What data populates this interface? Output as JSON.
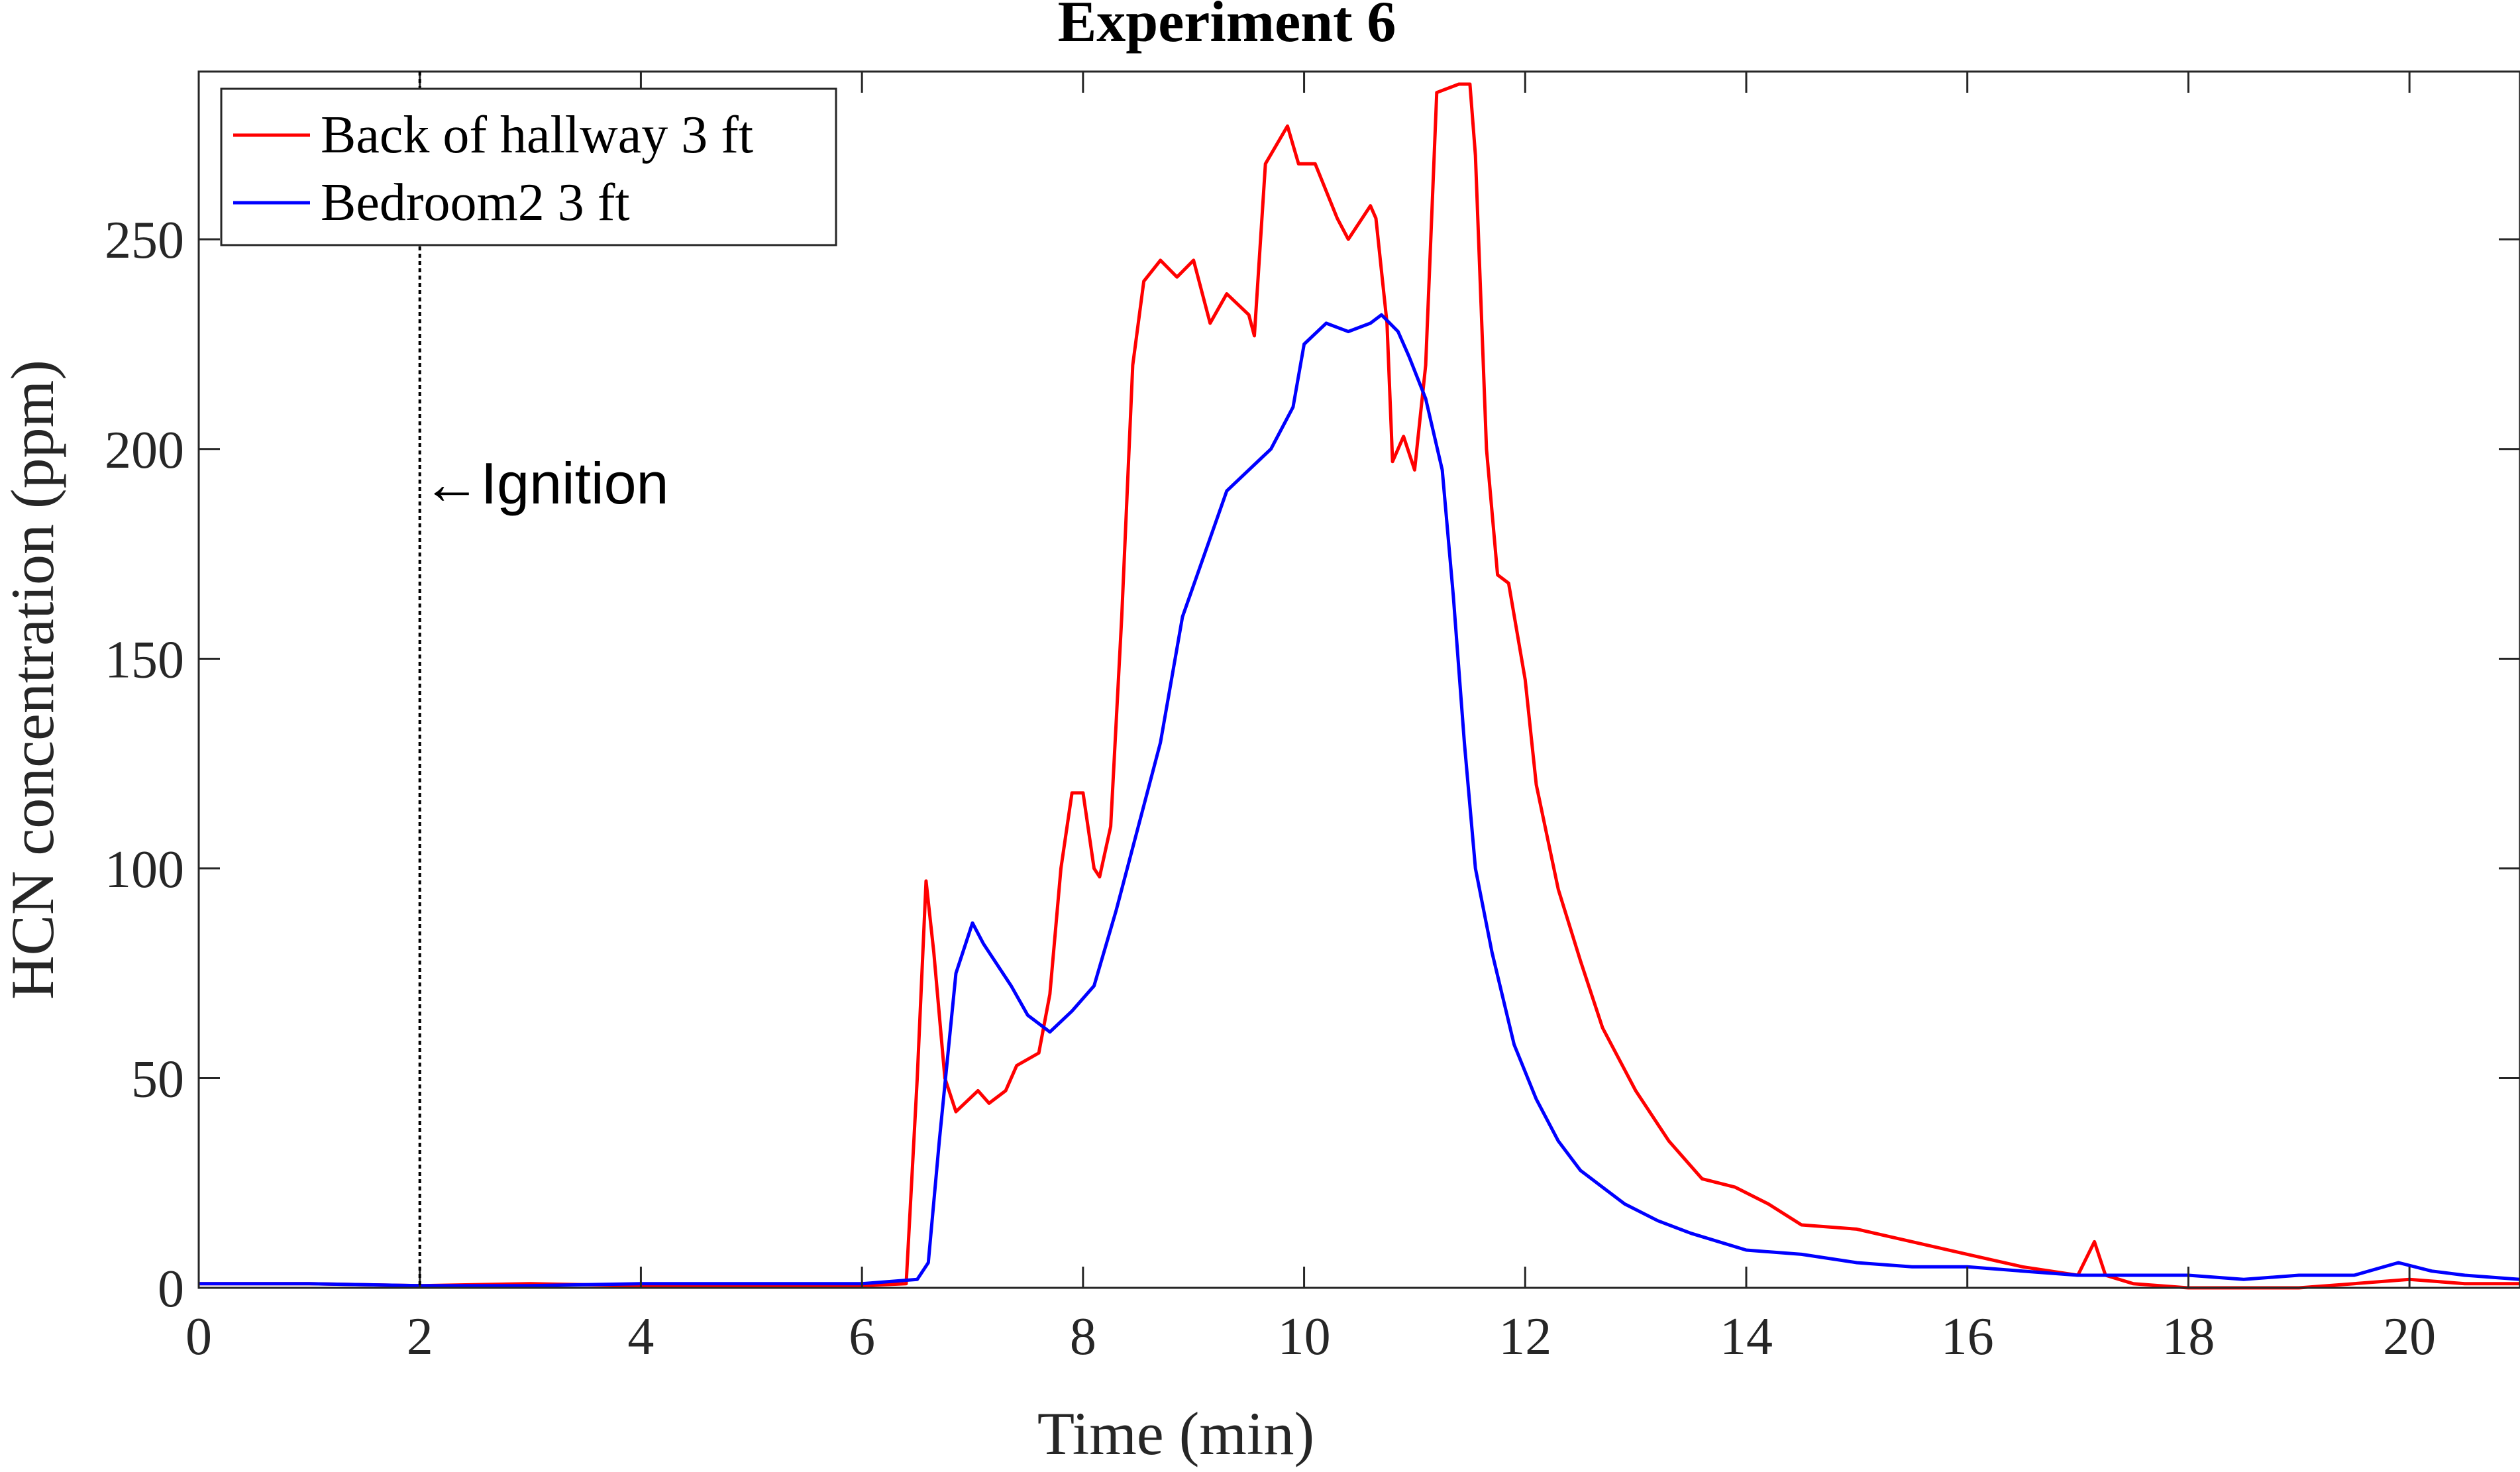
{
  "chart_data": {
    "type": "line",
    "title": "Experiment 6",
    "xlabel": "Time (min)",
    "ylabel": "HCN concentration (ppm)",
    "xlim": [
      0,
      21
    ],
    "ylim": [
      0,
      290
    ],
    "xticks": [
      0,
      2,
      4,
      6,
      8,
      10,
      12,
      14,
      16,
      18,
      20
    ],
    "yticks": [
      0,
      50,
      100,
      150,
      200,
      250
    ],
    "grid": false,
    "legend_position": "top-left",
    "annotation": {
      "x": 2,
      "text": "Ignition",
      "arrow": "←"
    },
    "series": [
      {
        "name": "Back of hallway 3 ft",
        "color": "#ff0000",
        "points": [
          [
            0,
            1
          ],
          [
            1,
            1
          ],
          [
            2,
            0.5
          ],
          [
            3,
            1
          ],
          [
            4,
            0.5
          ],
          [
            5,
            0.5
          ],
          [
            6,
            0.5
          ],
          [
            6.4,
            1
          ],
          [
            6.5,
            50
          ],
          [
            6.58,
            97
          ],
          [
            6.65,
            80
          ],
          [
            6.75,
            50
          ],
          [
            6.85,
            42
          ],
          [
            7.05,
            47
          ],
          [
            7.15,
            44
          ],
          [
            7.3,
            47
          ],
          [
            7.4,
            53
          ],
          [
            7.6,
            56
          ],
          [
            7.7,
            70
          ],
          [
            7.8,
            100
          ],
          [
            7.9,
            118
          ],
          [
            8.0,
            118
          ],
          [
            8.1,
            100
          ],
          [
            8.15,
            98
          ],
          [
            8.25,
            110
          ],
          [
            8.35,
            160
          ],
          [
            8.45,
            220
          ],
          [
            8.55,
            240
          ],
          [
            8.7,
            245
          ],
          [
            8.85,
            241
          ],
          [
            9.0,
            245
          ],
          [
            9.15,
            230
          ],
          [
            9.3,
            237
          ],
          [
            9.5,
            232
          ],
          [
            9.55,
            227
          ],
          [
            9.65,
            268
          ],
          [
            9.85,
            277
          ],
          [
            9.95,
            268
          ],
          [
            10.1,
            268
          ],
          [
            10.3,
            255
          ],
          [
            10.4,
            250
          ],
          [
            10.6,
            258
          ],
          [
            10.65,
            255
          ],
          [
            10.75,
            230
          ],
          [
            10.8,
            197
          ],
          [
            10.9,
            203
          ],
          [
            11.0,
            195
          ],
          [
            11.1,
            220
          ],
          [
            11.2,
            285
          ],
          [
            11.4,
            287
          ],
          [
            11.5,
            287
          ],
          [
            11.55,
            270
          ],
          [
            11.65,
            200
          ],
          [
            11.75,
            170
          ],
          [
            11.85,
            168
          ],
          [
            12.0,
            145
          ],
          [
            12.1,
            120
          ],
          [
            12.3,
            95
          ],
          [
            12.5,
            78
          ],
          [
            12.7,
            62
          ],
          [
            13.0,
            47
          ],
          [
            13.3,
            35
          ],
          [
            13.6,
            26
          ],
          [
            13.9,
            24
          ],
          [
            14.2,
            20
          ],
          [
            14.5,
            15
          ],
          [
            15.0,
            14
          ],
          [
            15.5,
            11
          ],
          [
            16.0,
            8
          ],
          [
            16.5,
            5
          ],
          [
            17.0,
            3
          ],
          [
            17.15,
            11
          ],
          [
            17.25,
            3
          ],
          [
            17.5,
            1
          ],
          [
            18.0,
            0
          ],
          [
            18.5,
            0
          ],
          [
            19.0,
            0
          ],
          [
            19.5,
            1
          ],
          [
            20.0,
            2
          ],
          [
            20.5,
            1
          ],
          [
            21,
            1
          ]
        ]
      },
      {
        "name": "Bedroom2 3 ft",
        "color": "#0000ff",
        "points": [
          [
            0,
            1
          ],
          [
            1,
            1
          ],
          [
            2,
            0.5
          ],
          [
            3,
            0.5
          ],
          [
            4,
            1
          ],
          [
            5,
            1
          ],
          [
            6,
            1
          ],
          [
            6.5,
            2
          ],
          [
            6.6,
            6
          ],
          [
            6.7,
            35
          ],
          [
            6.85,
            75
          ],
          [
            7.0,
            87
          ],
          [
            7.1,
            82
          ],
          [
            7.2,
            78
          ],
          [
            7.35,
            72
          ],
          [
            7.5,
            65
          ],
          [
            7.7,
            61
          ],
          [
            7.9,
            66
          ],
          [
            8.1,
            72
          ],
          [
            8.3,
            90
          ],
          [
            8.5,
            110
          ],
          [
            8.7,
            130
          ],
          [
            8.9,
            160
          ],
          [
            9.1,
            175
          ],
          [
            9.3,
            190
          ],
          [
            9.5,
            195
          ],
          [
            9.7,
            200
          ],
          [
            9.9,
            210
          ],
          [
            10.0,
            225
          ],
          [
            10.2,
            230
          ],
          [
            10.4,
            228
          ],
          [
            10.6,
            230
          ],
          [
            10.7,
            232
          ],
          [
            10.85,
            228
          ],
          [
            10.95,
            222
          ],
          [
            11.1,
            212
          ],
          [
            11.25,
            195
          ],
          [
            11.35,
            165
          ],
          [
            11.45,
            130
          ],
          [
            11.55,
            100
          ],
          [
            11.7,
            80
          ],
          [
            11.9,
            58
          ],
          [
            12.1,
            45
          ],
          [
            12.3,
            35
          ],
          [
            12.5,
            28
          ],
          [
            12.7,
            24
          ],
          [
            12.9,
            20
          ],
          [
            13.2,
            16
          ],
          [
            13.5,
            13
          ],
          [
            14.0,
            9
          ],
          [
            14.5,
            8
          ],
          [
            15.0,
            6
          ],
          [
            15.5,
            5
          ],
          [
            16.0,
            5
          ],
          [
            16.5,
            4
          ],
          [
            17.0,
            3
          ],
          [
            17.5,
            3
          ],
          [
            18.0,
            3
          ],
          [
            18.5,
            2
          ],
          [
            19.0,
            3
          ],
          [
            19.5,
            3
          ],
          [
            19.9,
            6
          ],
          [
            20.2,
            4
          ],
          [
            20.5,
            3
          ],
          [
            21,
            2
          ]
        ]
      }
    ]
  }
}
